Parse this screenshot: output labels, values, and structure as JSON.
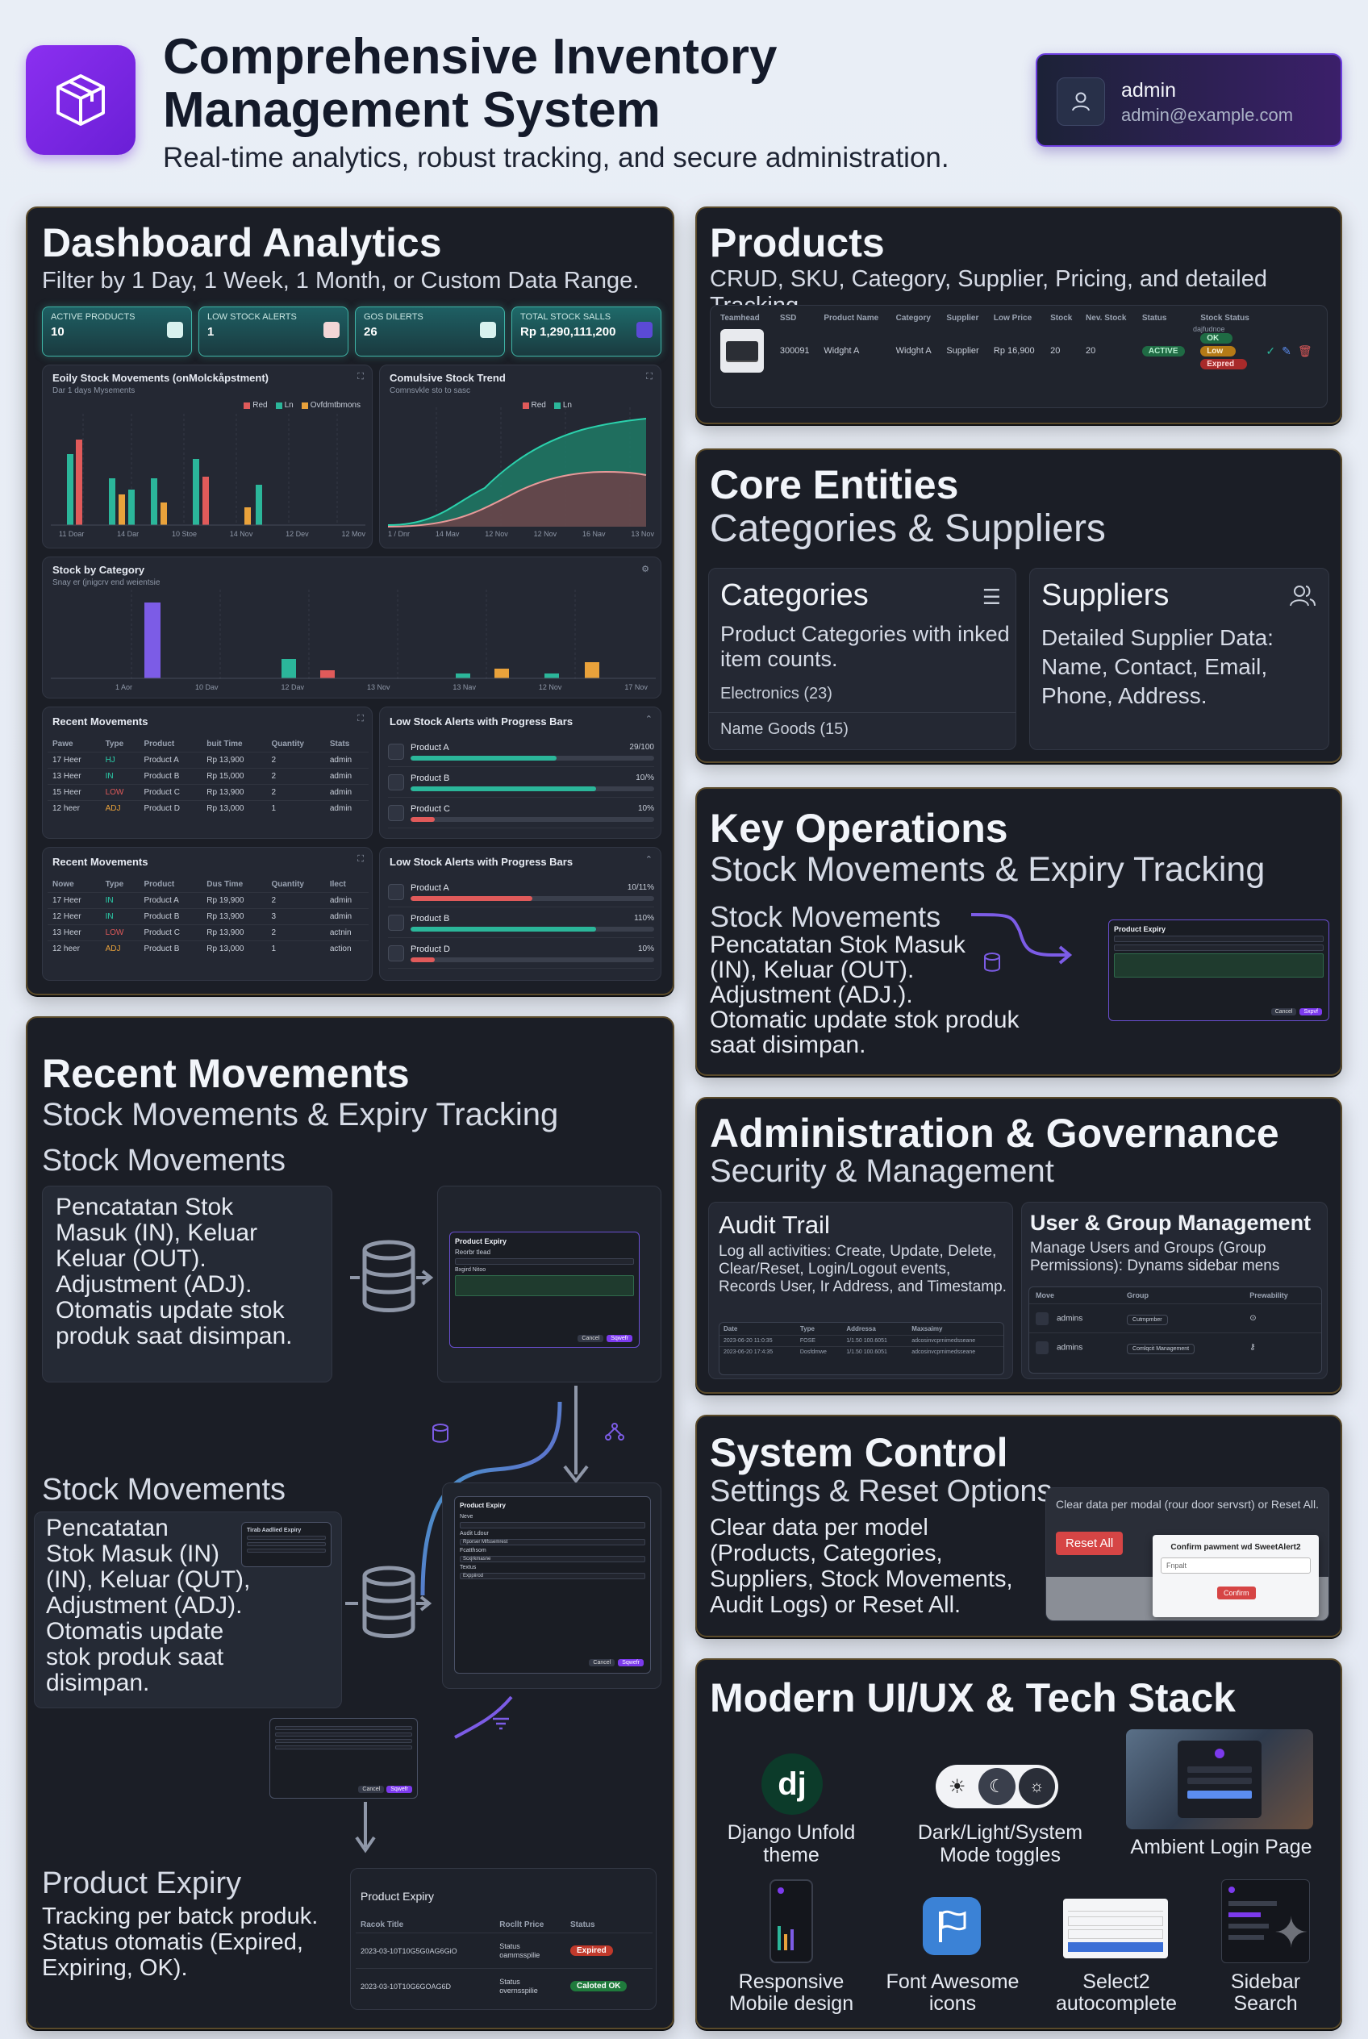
{
  "header": {
    "title_line1": "Comprehensive Inventory",
    "title_line2": "Management System",
    "subtitle": "Real-time analytics, robust tracking, and secure administration.",
    "user_name": "admin",
    "user_email": "admin@example.com",
    "logo_icon": "box-icon"
  },
  "dashboard": {
    "title": "Dashboard Analytics",
    "subtitle": "Filter by 1 Day, 1 Week, 1 Month, or Custom Data Range.",
    "kpis": [
      {
        "label": "ACTIVE PRODUCTS",
        "value": "10",
        "color": "#1e5f63"
      },
      {
        "label": "LOW STOCK ALERTS",
        "value": "1",
        "color": "#1e5f63"
      },
      {
        "label": "GOS DILERTS",
        "value": "26",
        "color": "#1e5f63"
      },
      {
        "label": "TOTAL STOCK SALLS",
        "value": "Rp 1,290,111,200",
        "color": "#1e6a6a"
      }
    ],
    "chart1_title": "Eoily Stock Movements (onMolckåpstment)",
    "chart1_sub": "Dar 1 days Mysements",
    "chart1_legend": [
      "Red",
      "Ln",
      "Ovfdmtbmons"
    ],
    "chart1_ticks": [
      "11 Doar",
      "14 Dar",
      "10 Stoe",
      "14 Nov",
      "12 Dev",
      "12 Mov"
    ],
    "chart2_title": "Comulsive Stock Trend",
    "chart2_sub": "Comnsvkle sto to sasc",
    "chart2_legend": [
      "Red",
      "Ln"
    ],
    "chart2_ticks": [
      "1 / Dnr",
      "14 Mav",
      "12 Nov",
      "12 Nov",
      "16 Nav",
      "13 Nov"
    ],
    "chart3_title": "Stock by Category",
    "chart3_sub": "Snay er (jnigcrv end weientsie",
    "chart3_ticks": [
      "1 Aor",
      "10 Dav",
      "12 Dav",
      "13 Nov",
      "13 Nav",
      "12 Nov",
      "17 Nov"
    ],
    "recent1": {
      "title": "Recent Movements",
      "cols": [
        "Pawe",
        "Type",
        "Product",
        "buit Time",
        "Quantity",
        "Stats"
      ],
      "rows": [
        [
          "17 Heer",
          "HJ",
          "Product A",
          "Rp 13,900",
          "2",
          "admin"
        ],
        [
          "13 Heer",
          "IN",
          "Product B",
          "Rp 15,000",
          "2",
          "admin"
        ],
        [
          "15 Heer",
          "LOW",
          "Product C",
          "Rp 13,900",
          "2",
          "admin"
        ],
        [
          "12 heer",
          "ADJ",
          "Product D",
          "Rp 13,000",
          "1",
          "admin"
        ]
      ]
    },
    "recent2": {
      "title": "Recent Movements",
      "cols": [
        "Nowe",
        "Type",
        "Product",
        "Dus Time",
        "Quantity",
        "Ilect"
      ],
      "rows": [
        [
          "17 Heer",
          "IN",
          "Product A",
          "Rp 19,900",
          "2",
          "admin"
        ],
        [
          "12 Heer",
          "IN",
          "Product B",
          "Rp 13,900",
          "3",
          "admin"
        ],
        [
          "13 Heer",
          "LOW",
          "Product C",
          "Rp 13,900",
          "2",
          "actnin"
        ],
        [
          "12 heer",
          "ADJ",
          "Product B",
          "Rp 13,000",
          "1",
          "action"
        ]
      ]
    },
    "alerts1": {
      "title": "Low Stock Alerts with Progress Bars",
      "items": [
        {
          "name": "Product A",
          "value": "29/100",
          "fill": 0.6,
          "color": "#2bb69a"
        },
        {
          "name": "Product B",
          "value": "10/%",
          "fill": 0.76,
          "color": "#2bb69a"
        },
        {
          "name": "Product C",
          "value": "10%",
          "fill": 0.1,
          "color": "#e05a5a"
        }
      ]
    },
    "alerts2": {
      "title": "Low Stock Alerts with Progress Bars",
      "items": [
        {
          "name": "Product A",
          "value": "10/11%",
          "fill": 0.5,
          "color": "#e05a5a"
        },
        {
          "name": "Product B",
          "value": "110%",
          "fill": 0.76,
          "color": "#2bb69a"
        },
        {
          "name": "Product D",
          "value": "10%",
          "fill": 0.1,
          "color": "#e05a5a"
        }
      ]
    }
  },
  "products": {
    "title": "Products",
    "subtitle": "CRUD, SKU, Category, Supplier, Pricing, and detailed Tracking.",
    "cols": [
      "Teamhead",
      "SSD",
      "Product Name",
      "Category",
      "Supplier",
      "Low Price",
      "Stock",
      "Nev. Stock",
      "Status",
      "Stock Status"
    ],
    "stock_status_sub": "dajfudnoe",
    "row": [
      "300091",
      "Widght A",
      "Widght A",
      "Supplier",
      "Rp 16,900",
      "20",
      "20",
      "ACTIVE"
    ],
    "badges": [
      "OK",
      "Low",
      "Expred"
    ]
  },
  "core": {
    "title": "Core Entities",
    "subtitle": "Categories & Suppliers",
    "categories_title": "Categories",
    "categories_desc": "Product Categories with inked item counts.",
    "category_items": [
      "Electronics (23)",
      "Name Goods (15)"
    ],
    "suppliers_title": "Suppliers",
    "suppliers_desc": "Detailed Supplier Data: Name, Contact, Email, Phone, Address."
  },
  "keyops": {
    "title": "Key Operations",
    "subtitle": "Stock Movements & Expiry Tracking",
    "section": "Stock Movements",
    "desc_l1": "Pencatatan Stok Masuk",
    "desc_l2": "(IN), Keluar (OUT).",
    "desc_l3": "Adjustment (ADJ.).",
    "desc_l4": "Otomatic update stok produk",
    "desc_l5": "saat disimpan.",
    "mini_title": "Product Expiry",
    "mini_cancel": "Cancel",
    "mini_save": "Sxpvf"
  },
  "admin": {
    "title": "Administration & Governance",
    "subtitle": "Security & Management",
    "audit_title": "Audit Trail",
    "audit_desc": "Log all activities: Create, Update, Delete, Clear/Reset, Login/Logout events, Records User, Ir Address, and Timestamp.",
    "audit_cols": [
      "Date",
      "Type",
      "Addressa",
      "Maxsaimy"
    ],
    "audit_rows": [
      [
        "2023-06-20 11:0:35",
        "FOSE",
        "1/1.50 100.6051",
        "adcosinvcprnimedsseane"
      ],
      [
        "2023-06-20 17:4:35",
        "Dosfdmwe",
        "1/1.50 100.6051",
        "adcosinvcprnimedsseane"
      ]
    ],
    "ugm_title": "User & Group Management",
    "ugm_desc": "Manage Users and Groups (Group Permissions): Dynams sidebar mens",
    "ugm_cols": [
      "Move",
      "Group",
      "Prewability"
    ],
    "ugm_rows": [
      [
        "admins",
        "Cutmpmber"
      ],
      [
        "admins",
        "Comlqcit Management"
      ]
    ]
  },
  "system": {
    "title": "System Control",
    "subtitle": "Settings & Reset Options",
    "desc": "Clear data per model (Products, Categories, Suppliers, Stock Movements, Audit Logs) or Reset All.",
    "box_text": "Clear data per modal (rour door servsrt) or Reset All.",
    "reset_label": "Reset All",
    "dialog_title": "Confirm pawment wd SweetAlert2",
    "dialog_input": "Fnpalt",
    "dialog_confirm": "Confirm"
  },
  "tech": {
    "title": "Modern UI/UX & Tech Stack",
    "items": [
      {
        "line1": "Django Unfold",
        "line2": "theme"
      },
      {
        "line1": "Dark/Light/System",
        "line2": "Mode toggles"
      },
      {
        "line1": "Ambient Login Page",
        "line2": ""
      },
      {
        "line1": "Responsive",
        "line2": "Mobile design"
      },
      {
        "line1": "Font Awesome",
        "line2": "icons"
      },
      {
        "line1": "Select2",
        "line2": "autocomplete"
      },
      {
        "line1": "Sidebar",
        "line2": "Search"
      }
    ]
  },
  "recent_movements": {
    "title": "Recent Movements",
    "subtitle": "Stock Movements & Expiry Tracking",
    "section1": "Stock Movements",
    "desc1": [
      "Pencatatan Stok",
      "Masuk (IN), Keluar",
      "Keluar (OUT).",
      "Adjustment (ADJ).",
      "Otomatis update stok",
      "produk saat disimpan."
    ],
    "section2": "Stock Movements",
    "desc2": [
      "Pencatatan",
      "Stok Masuk (IN)",
      "(IN), Keluar (QUT),",
      "Adjustment (ADJ).",
      "Otomatis update",
      "stok produk saat",
      "disimpan."
    ],
    "expiry_title": "Product Expiry",
    "expiry_desc": [
      "Tracking per batck produk.",
      "Status otomatis (Expired,",
      "Expiring, OK)."
    ],
    "expiry_table": {
      "title": "Product Expiry",
      "cols": [
        "Racok Title",
        "Rocllt Price",
        "Status"
      ],
      "rows": [
        {
          "title": "2023-03-10T10G5G0AG6GiO",
          "price1": "Status",
          "price2": "oammsspilie",
          "status": "Expired",
          "color": "#c0392b"
        },
        {
          "title": "2023-03-10T10G6GOAG6D",
          "price1": "Status",
          "price2": "overnsspilie",
          "status": "Caloted OK",
          "color": "#1f7a3c"
        }
      ]
    },
    "mini_title": "Product Expiry",
    "mini_sub": "Reorbr tlead",
    "mini_label": "Bxgird Nitoo",
    "mini2_title": "Product Expiry",
    "mini2_labels": [
      "Neve",
      "Audit Ldour",
      "Fcatthsom",
      "Textus"
    ],
    "mini2_values": [
      "Rporser Mlfssemrest",
      "Scxjrkmasne",
      "Exppiirod"
    ],
    "tooltip_title": "Tirab Aadlied Expiry",
    "cancel": "Cancel",
    "save": "Sqwefr"
  }
}
